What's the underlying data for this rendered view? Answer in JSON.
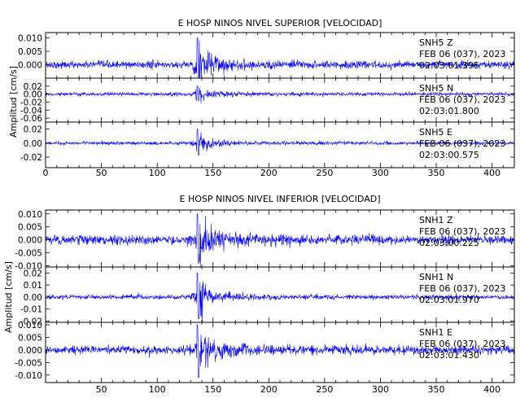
{
  "chart_data": [
    {
      "type": "line",
      "title": "E HOSP NINOS NIVEL SUPERIOR [VELOCIDAD]",
      "ylabel": "Amplitud [cm/s]",
      "xlim": [
        0,
        420
      ],
      "x_ticks": [
        0,
        50,
        100,
        150,
        200,
        250,
        300,
        350,
        400
      ],
      "x_tick_labels": [
        "0",
        "50",
        "100",
        "150",
        "200",
        "250",
        "300",
        "350",
        "400"
      ],
      "event_x": 136,
      "series": [
        {
          "name": "SNH5 Z",
          "station": "SNH5",
          "component": "Z",
          "date_label": "FEB 06 (037), 2023",
          "time_label": "02:03:01.395",
          "ylim": [
            -0.005,
            0.012
          ],
          "yticks": [
            -0.005,
            0.0,
            0.005,
            0.01
          ],
          "ytick_labels": [
            "",
            "0.000",
            "0.005",
            "0.010"
          ],
          "noise": 0.0009,
          "peak": 0.01,
          "peak_neg": -0.005
        },
        {
          "name": "SNH5 N",
          "station": "SNH5",
          "component": "N",
          "date_label": "FEB 06 (037), 2023",
          "time_label": "02:03:01.800",
          "ylim": [
            -0.07,
            0.04
          ],
          "yticks": [
            -0.06,
            -0.04,
            -0.02,
            0.0,
            0.02
          ],
          "ytick_labels": [
            "-0.06",
            "-0.04",
            "-0.02",
            "0.00",
            "0.02"
          ],
          "noise": 0.0028,
          "peak": 0.02,
          "peak_neg": -0.016
        },
        {
          "name": "SNH5 E",
          "station": "SNH5",
          "component": "E",
          "date_label": "FEB 06 (037), 2023",
          "time_label": "02:03:00.575",
          "ylim": [
            -0.035,
            0.03
          ],
          "yticks": [
            -0.02,
            0.0,
            0.02
          ],
          "ytick_labels": [
            "-0.02",
            "0.00",
            "0.02"
          ],
          "noise": 0.0015,
          "peak": 0.02,
          "peak_neg": -0.017
        }
      ]
    },
    {
      "type": "line",
      "title": "E HOSP NINOS NIVEL INFERIOR [VELOCIDAD]",
      "ylabel": "Amplitud [cm/s]",
      "xlim": [
        0,
        420
      ],
      "x_ticks": [
        50,
        100,
        150,
        200,
        250,
        300,
        350,
        400
      ],
      "x_tick_labels": [
        "50",
        "100",
        "150",
        "200",
        "250",
        "300",
        "350",
        "400"
      ],
      "event_x": 136,
      "series": [
        {
          "name": "SNH1 Z",
          "station": "SNH1",
          "component": "Z",
          "date_label": "FEB 06 (037), 2023",
          "time_label": "02:03:00.225",
          "ylim": [
            -0.0105,
            0.0115
          ],
          "yticks": [
            -0.01,
            -0.005,
            0.0,
            0.005,
            0.01
          ],
          "ytick_labels": [
            "-0.010",
            "-0.005",
            "0.000",
            "0.005",
            "0.010"
          ],
          "noise": 0.0012,
          "peak": 0.01,
          "peak_neg": -0.009
        },
        {
          "name": "SNH1 N",
          "station": "SNH1",
          "component": "N",
          "date_label": "FEB 06 (037), 2023",
          "time_label": "02:03:01.970",
          "ylim": [
            -0.021,
            0.025
          ],
          "yticks": [
            -0.02,
            -0.01,
            0.0,
            0.01,
            0.02
          ],
          "ytick_labels": [
            "-0.02",
            "-0.01",
            "0.00",
            "0.01",
            "0.02"
          ],
          "noise": 0.0012,
          "peak": 0.02,
          "peak_neg": -0.018
        },
        {
          "name": "SNH1 E",
          "station": "SNH1",
          "component": "E",
          "date_label": "FEB 06 (037), 2023",
          "time_label": "02:03:01.430",
          "ylim": [
            -0.013,
            0.011
          ],
          "yticks": [
            -0.01,
            -0.005,
            0.0,
            0.005,
            0.01
          ],
          "ytick_labels": [
            "-0.010",
            "-0.005",
            "0.000",
            "0.005",
            "0.010"
          ],
          "noise": 0.0011,
          "peak": 0.01,
          "peak_neg": -0.011
        }
      ]
    }
  ]
}
